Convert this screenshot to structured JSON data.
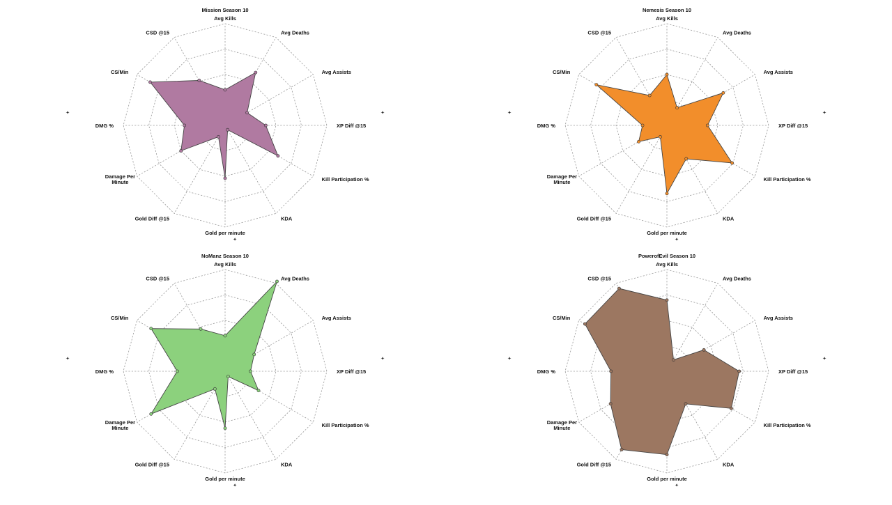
{
  "chart_data": [
    {
      "type": "radar",
      "title": "Mission Season 10",
      "axes": [
        "Avg Kills",
        "Avg Deaths",
        "Avg Assists",
        "XP Diff @15",
        "Kill Participation %",
        "KDA",
        "Gold per minute",
        "Gold Diff @15",
        "Damage Per Minute",
        "DMG %",
        "CS/Min",
        "CSD @15"
      ],
      "values": [
        0.35,
        0.6,
        0.25,
        0.4,
        0.6,
        0.05,
        0.52,
        0.13,
        0.5,
        0.4,
        0.85,
        0.51
      ],
      "rlim": [
        0,
        1
      ],
      "color": "#b07aa1"
    },
    {
      "type": "radar",
      "title": "Nemesis Season 10",
      "axes": [
        "Avg Kills",
        "Avg Deaths",
        "Avg Assists",
        "XP Diff @15",
        "Kill Participation %",
        "KDA",
        "Gold per minute",
        "Gold Diff @15",
        "Damage Per Minute",
        "DMG %",
        "CS/Min",
        "CSD @15"
      ],
      "values": [
        0.5,
        0.2,
        0.64,
        0.4,
        0.74,
        0.38,
        0.67,
        0.13,
        0.32,
        0.24,
        0.8,
        0.34
      ],
      "rlim": [
        0,
        1
      ],
      "color": "#f28e2b"
    },
    {
      "type": "radar",
      "title": "NoManz Season 10",
      "axes": [
        "Avg Kills",
        "Avg Deaths",
        "Avg Assists",
        "XP Diff @15",
        "Kill Participation %",
        "KDA",
        "Gold per minute",
        "Gold Diff @15",
        "Damage Per Minute",
        "DMG %",
        "CS/Min",
        "CSD @15"
      ],
      "values": [
        0.35,
        1.02,
        0.33,
        0.25,
        0.38,
        0.06,
        0.56,
        0.2,
        0.84,
        0.47,
        0.84,
        0.48
      ],
      "rlim": [
        0,
        1
      ],
      "color": "#8cd17d"
    },
    {
      "type": "radar",
      "title": "PowerofEvil Season 10",
      "axes": [
        "Avg Kills",
        "Avg Deaths",
        "Avg Assists",
        "XP Diff @15",
        "Kill Participation %",
        "KDA",
        "Gold per minute",
        "Gold Diff @15",
        "Damage Per Minute",
        "DMG %",
        "CS/Min",
        "CSD @15"
      ],
      "values": [
        0.7,
        0.13,
        0.42,
        0.71,
        0.73,
        0.37,
        0.82,
        0.89,
        0.64,
        0.55,
        0.93,
        0.94
      ],
      "rlim": [
        0,
        1
      ],
      "color": "#9c7761"
    }
  ]
}
